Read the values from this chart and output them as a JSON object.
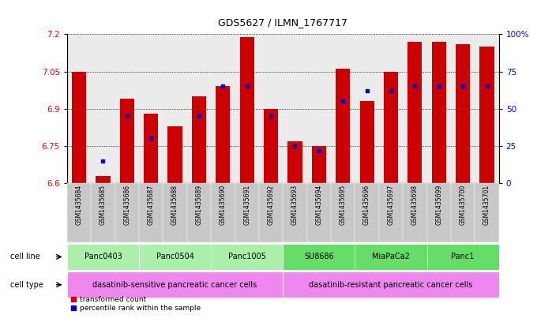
{
  "title": "GDS5627 / ILMN_1767717",
  "samples": [
    "GSM1435684",
    "GSM1435685",
    "GSM1435686",
    "GSM1435687",
    "GSM1435688",
    "GSM1435689",
    "GSM1435690",
    "GSM1435691",
    "GSM1435692",
    "GSM1435693",
    "GSM1435694",
    "GSM1435695",
    "GSM1435696",
    "GSM1435697",
    "GSM1435698",
    "GSM1435699",
    "GSM1435700",
    "GSM1435701"
  ],
  "transformed_counts": [
    7.05,
    6.63,
    6.94,
    6.88,
    6.83,
    6.95,
    6.99,
    7.19,
    6.9,
    6.77,
    6.75,
    7.06,
    6.93,
    7.05,
    7.17,
    7.17,
    7.16,
    7.15
  ],
  "percentile_ranks": [
    null,
    15,
    45,
    30,
    null,
    45,
    65,
    65,
    45,
    25,
    22,
    55,
    62,
    62,
    65,
    65,
    65,
    65
  ],
  "ylim_left": [
    6.6,
    7.2
  ],
  "ylim_right": [
    0,
    100
  ],
  "yticks_left": [
    6.6,
    6.75,
    6.9,
    7.05,
    7.2
  ],
  "yticks_right": [
    0,
    25,
    50,
    75,
    100
  ],
  "ytick_labels_right": [
    "0",
    "25",
    "50",
    "75",
    "100%"
  ],
  "bar_color": "#cc0000",
  "percentile_color": "#0000cc",
  "bar_bottom": 6.6,
  "cell_lines": [
    {
      "name": "Panc0403",
      "start": 0,
      "end": 2,
      "color": "#aaf0aa"
    },
    {
      "name": "Panc0504",
      "start": 3,
      "end": 5,
      "color": "#aaf0aa"
    },
    {
      "name": "Panc1005",
      "start": 6,
      "end": 8,
      "color": "#aaf0aa"
    },
    {
      "name": "SU8686",
      "start": 9,
      "end": 11,
      "color": "#66dd66"
    },
    {
      "name": "MiaPaCa2",
      "start": 12,
      "end": 14,
      "color": "#66dd66"
    },
    {
      "name": "Panc1",
      "start": 15,
      "end": 17,
      "color": "#66dd66"
    }
  ],
  "cell_types": [
    {
      "name": "dasatinib-sensitive pancreatic cancer cells",
      "start": 0,
      "end": 8,
      "color": "#ee88ee"
    },
    {
      "name": "dasatinib-resistant pancreatic cancer cells",
      "start": 9,
      "end": 17,
      "color": "#ee88ee"
    }
  ],
  "legend_labels": [
    "transformed count",
    "percentile rank within the sample"
  ],
  "legend_colors": [
    "#cc0000",
    "#0000cc"
  ],
  "sample_bg_color": "#c8c8c8",
  "bar_width": 0.6
}
